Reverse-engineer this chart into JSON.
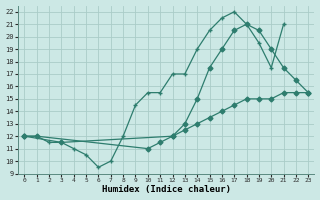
{
  "xlabel": "Humidex (Indice chaleur)",
  "bg_color": "#cce8e5",
  "grid_color": "#b0d8d4",
  "line_color": "#2e7d6e",
  "xlim": [
    -0.5,
    23.5
  ],
  "ylim": [
    9,
    22.5
  ],
  "xticks": [
    0,
    1,
    2,
    3,
    4,
    5,
    6,
    7,
    8,
    9,
    10,
    11,
    12,
    13,
    14,
    15,
    16,
    17,
    18,
    19,
    20,
    21,
    22,
    23
  ],
  "yticks": [
    9,
    10,
    11,
    12,
    13,
    14,
    15,
    16,
    17,
    18,
    19,
    20,
    21,
    22
  ],
  "line1_x": [
    0,
    1,
    2,
    3,
    4,
    5,
    6,
    7,
    8,
    9,
    10,
    11,
    12,
    13,
    14,
    15,
    16,
    17,
    18,
    19,
    20,
    21
  ],
  "line1_y": [
    12,
    12,
    11.5,
    11.5,
    11,
    10.5,
    9.5,
    10,
    12,
    14.5,
    15.5,
    15.5,
    17,
    17,
    19,
    20.5,
    21.5,
    22,
    21,
    19.5,
    17.5,
    21
  ],
  "line2_x": [
    0,
    3,
    12,
    13,
    14,
    15,
    16,
    17,
    18,
    19,
    20,
    21,
    22,
    23
  ],
  "line2_y": [
    12,
    11.5,
    12,
    13,
    15,
    17.5,
    19,
    20.5,
    21,
    20.5,
    19,
    17.5,
    16.5,
    15.5
  ],
  "line3_x": [
    0,
    1,
    10,
    11,
    12,
    13,
    14,
    15,
    16,
    17,
    18,
    19,
    20,
    21,
    22,
    23
  ],
  "line3_y": [
    12,
    12,
    11,
    11.5,
    12,
    12.5,
    13,
    13.5,
    14,
    14.5,
    15,
    15,
    15,
    15.5,
    15.5,
    15.5
  ]
}
